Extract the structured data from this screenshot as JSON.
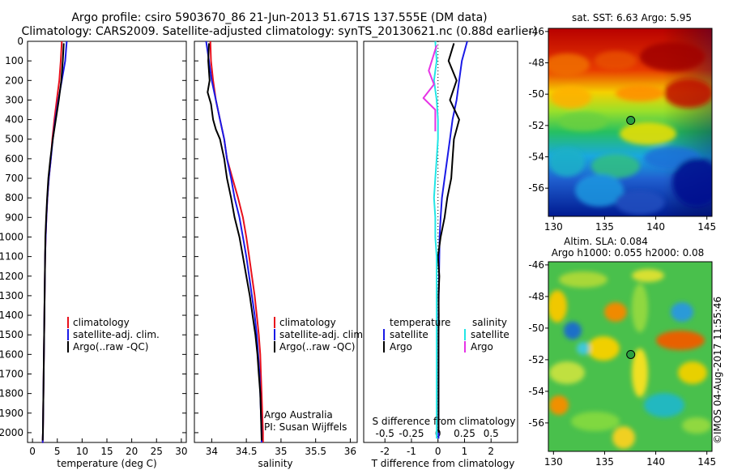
{
  "title": {
    "line1": "Argo profile: csiro 5903670_86 21-Jun-2013 51.671S 137.555E (DM data)",
    "line2": "Climatology: CARS2009. Satellite-adjusted climatology: synTS_20130621.nc (0.88d earlier)"
  },
  "colors": {
    "climatology": "#e8101c",
    "satellite": "#1a1ae6",
    "argo": "#000000",
    "sal_satellite": "#22e6e6",
    "sal_argo": "#e633e6"
  },
  "panels": {
    "temperature": {
      "xlabel": "temperature (deg C)",
      "legend": [
        "climatology",
        "satellite-adj. clim.",
        "Argo(..raw -QC)"
      ]
    },
    "salinity": {
      "xlabel": "salinity",
      "legend": [
        "climatology",
        "satellite-adj. clim.",
        "Argo(..raw -QC)"
      ],
      "note1": "Argo Australia",
      "note2": "PI: Susan Wijffels"
    },
    "difference": {
      "xlabel": "T difference from climatology",
      "top_label": "S difference from climatology",
      "legend_temp_header": "temperature",
      "legend_sal_header": "salinity",
      "legend_temp": [
        "satellite",
        "Argo"
      ],
      "legend_sal": [
        "satellite",
        "Argo"
      ]
    },
    "sst_map": {
      "title": "sat. SST: 6.63 Argo: 5.95"
    },
    "sla_map": {
      "title1": "Altim. SLA: 0.084",
      "title2": "Argo h1000: 0.055 h2000: 0.08"
    }
  },
  "watermark": "©IMOS 04-Aug-2017 11:55:46",
  "chart_data": [
    {
      "type": "line",
      "name": "temperature-profile",
      "xlim": [
        -1,
        31
      ],
      "ylim": [
        0,
        2050
      ],
      "xticks": [
        0,
        5,
        10,
        15,
        20,
        25,
        30
      ],
      "yticks": [
        0,
        100,
        200,
        300,
        400,
        500,
        600,
        700,
        800,
        900,
        1000,
        1100,
        1200,
        1300,
        1400,
        1500,
        1600,
        1700,
        1800,
        1900,
        2000
      ],
      "series": [
        {
          "name": "climatology",
          "x": [
            5.9,
            5.7,
            5.4,
            4.9,
            4.4,
            4.0,
            3.7,
            3.3,
            3.0,
            2.8,
            2.65,
            2.55,
            2.5,
            2.45,
            2.4,
            2.35,
            2.3,
            2.25,
            2.2,
            2.15,
            2.1,
            2.05,
            2.0
          ],
          "y": [
            0,
            100,
            200,
            300,
            400,
            500,
            600,
            700,
            800,
            900,
            1000,
            1100,
            1200,
            1300,
            1400,
            1500,
            1600,
            1700,
            1800,
            1900,
            2000,
            2050,
            2050
          ]
        },
        {
          "name": "satellite-adj. clim.",
          "x": [
            6.9,
            6.6,
            5.9,
            5.2,
            4.6,
            4.1,
            3.7,
            3.3,
            3.0,
            2.8,
            2.65,
            2.55,
            2.5,
            2.45,
            2.4,
            2.35,
            2.3,
            2.25,
            2.2,
            2.15,
            2.1,
            2.05,
            2.0
          ],
          "y": [
            0,
            100,
            200,
            300,
            400,
            500,
            600,
            700,
            800,
            900,
            1000,
            1100,
            1200,
            1300,
            1400,
            1500,
            1600,
            1700,
            1800,
            1900,
            2000,
            2050,
            2050
          ]
        },
        {
          "name": "Argo(..raw -QC)",
          "x": [
            6.3,
            6.1,
            5.8,
            5.3,
            4.7,
            4.1,
            3.6,
            3.2,
            2.95,
            2.75,
            2.6,
            2.55,
            2.5,
            2.45,
            2.4,
            2.35,
            2.3,
            2.25,
            2.2,
            2.15,
            2.1,
            2.05
          ],
          "y": [
            10,
            100,
            200,
            300,
            400,
            500,
            600,
            700,
            800,
            900,
            1000,
            1100,
            1200,
            1300,
            1400,
            1500,
            1600,
            1700,
            1800,
            1900,
            2000,
            2040
          ]
        }
      ]
    },
    {
      "type": "line",
      "name": "salinity-profile",
      "xlim": [
        33.75,
        36.1
      ],
      "ylim": [
        0,
        2050
      ],
      "xticks": [
        34,
        34.5,
        35,
        35.5,
        36
      ],
      "xticklabels": [
        "34",
        "34.5",
        "35",
        "35.5",
        "36"
      ],
      "series": [
        {
          "name": "climatology",
          "x": [
            33.98,
            33.99,
            34.02,
            34.06,
            34.12,
            34.18,
            34.22,
            34.3,
            34.38,
            34.45,
            34.5,
            34.54,
            34.58,
            34.62,
            34.65,
            34.68,
            34.7,
            34.71,
            34.72,
            34.73,
            34.74,
            34.74
          ],
          "y": [
            0,
            100,
            200,
            300,
            400,
            500,
            600,
            700,
            800,
            900,
            1000,
            1100,
            1200,
            1300,
            1400,
            1500,
            1600,
            1700,
            1800,
            1900,
            2000,
            2050
          ]
        },
        {
          "name": "satellite-adj. clim.",
          "x": [
            33.92,
            33.96,
            34.0,
            34.06,
            34.12,
            34.18,
            34.22,
            34.28,
            34.33,
            34.4,
            34.45,
            34.5,
            34.54,
            34.58,
            34.62,
            34.65,
            34.67,
            34.69,
            34.7,
            34.71,
            34.72,
            34.72
          ],
          "y": [
            0,
            100,
            200,
            300,
            400,
            500,
            600,
            700,
            800,
            900,
            1000,
            1100,
            1200,
            1300,
            1400,
            1500,
            1600,
            1700,
            1800,
            1900,
            2000,
            2050
          ]
        },
        {
          "name": "Argo(..raw -QC)",
          "x": [
            33.96,
            33.95,
            33.97,
            33.94,
            33.99,
            34.02,
            34.06,
            34.12,
            34.18,
            34.22,
            34.28,
            34.33,
            34.4,
            34.45,
            34.5,
            34.55,
            34.59,
            34.63,
            34.66,
            34.68,
            34.7,
            34.71,
            34.72
          ],
          "y": [
            10,
            100,
            200,
            260,
            320,
            400,
            450,
            500,
            600,
            700,
            800,
            900,
            1000,
            1100,
            1200,
            1300,
            1400,
            1500,
            1600,
            1700,
            1800,
            1900,
            2040
          ]
        }
      ]
    },
    {
      "type": "line",
      "name": "difference-profile",
      "xlim": [
        -2.8,
        3.0
      ],
      "ylim": [
        0,
        2050
      ],
      "xticks": [
        -2,
        -1,
        0,
        1,
        2
      ],
      "top_xticks": [
        -0.5,
        -0.25,
        0,
        0.25,
        0.5
      ],
      "top_xticklabels": [
        "-0.5",
        "-0.25",
        "0",
        "0.25",
        "0.5"
      ],
      "series": [
        {
          "name": "temperature satellite",
          "x": [
            1.1,
            0.9,
            0.8,
            0.7,
            0.55,
            0.45,
            0.35,
            0.25,
            0.15,
            0.1,
            0.06,
            0.05,
            0.04,
            0.03,
            0.02,
            0.02,
            0.02,
            0.02,
            0.02,
            0.02,
            0.02
          ],
          "y": [
            0,
            100,
            200,
            300,
            400,
            500,
            600,
            700,
            800,
            900,
            1000,
            1100,
            1200,
            1300,
            1400,
            1500,
            1600,
            1700,
            1800,
            1900,
            2030
          ]
        },
        {
          "name": "temperature Argo",
          "x": [
            0.6,
            0.4,
            0.7,
            0.45,
            0.8,
            0.6,
            0.55,
            0.5,
            0.35,
            0.25,
            0.1,
            0.0,
            0.05,
            0.02,
            0.03,
            0.02,
            0.02,
            0.02,
            0.02,
            0.02
          ],
          "y": [
            10,
            100,
            200,
            300,
            400,
            500,
            600,
            700,
            800,
            900,
            1000,
            1100,
            1200,
            1300,
            1400,
            1500,
            1600,
            1700,
            1800,
            2000
          ]
        },
        {
          "name": "salinity satellite",
          "x": [
            -0.1,
            -0.05,
            -0.15,
            -0.05,
            0.0,
            0.0,
            -0.05,
            -0.1,
            -0.15,
            -0.1,
            -0.1,
            -0.05,
            -0.05,
            -0.05,
            -0.05,
            -0.05,
            -0.05,
            -0.05,
            -0.05,
            -0.05,
            -0.05
          ],
          "y": [
            0,
            100,
            200,
            300,
            400,
            500,
            600,
            700,
            800,
            900,
            1000,
            1100,
            1200,
            1300,
            1400,
            1500,
            1600,
            1700,
            1800,
            1900,
            2030
          ]
        },
        {
          "name": "salinity Argo",
          "x": [
            -0.05,
            -0.35,
            -0.15,
            -0.55,
            -0.1,
            -0.1,
            -0.1,
            -0.1
          ],
          "y": [
            20,
            150,
            220,
            290,
            350,
            400,
            430,
            460
          ]
        }
      ]
    },
    {
      "type": "heatmap",
      "name": "sst-map",
      "xlim": [
        129.5,
        145.5
      ],
      "ylim": [
        -57.8,
        -45.8
      ],
      "xticks": [
        130,
        135,
        140,
        145
      ],
      "yticks": [
        -46,
        -48,
        -50,
        -52,
        -54,
        -56
      ],
      "marker": {
        "lon": 137.555,
        "lat": -51.671
      }
    },
    {
      "type": "heatmap",
      "name": "sla-map",
      "xlim": [
        129.5,
        145.5
      ],
      "ylim": [
        -57.8,
        -45.8
      ],
      "xticks": [
        130,
        135,
        140,
        145
      ],
      "yticks": [
        -46,
        -48,
        -50,
        -52,
        -54,
        -56
      ],
      "marker": {
        "lon": 137.555,
        "lat": -51.671
      }
    }
  ]
}
